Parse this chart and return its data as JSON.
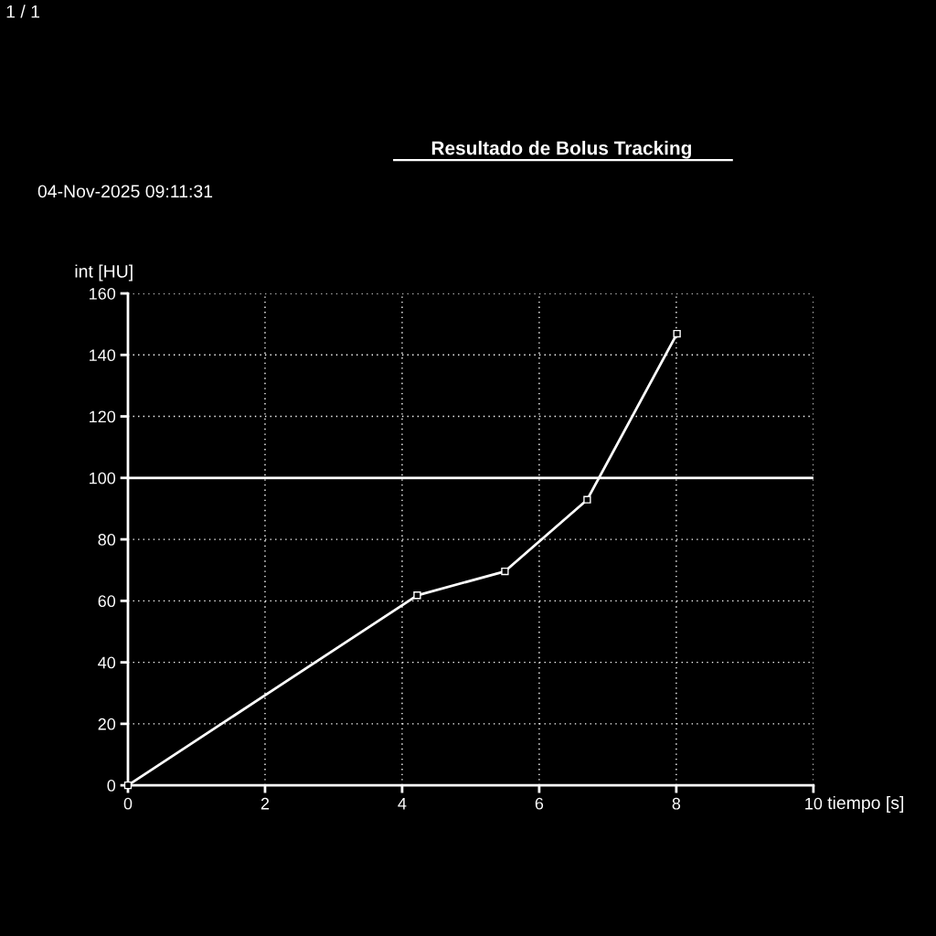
{
  "chart_data": {
    "type": "line",
    "title": "Resultado de Bolus Tracking",
    "xlabel": "tiempo [s]",
    "ylabel": "int [HU]",
    "annotations": [
      "1 / 1",
      "04-Nov-2025 09:11:31"
    ],
    "x": [
      0,
      4.22,
      5.5,
      6.7,
      8.01
    ],
    "series": [
      {
        "color": "#ffffff",
        "values": [
          0,
          61.8,
          69.6,
          92.9,
          146.9
        ]
      }
    ],
    "xlim": [
      0,
      10
    ],
    "xticks": [
      0,
      2,
      4,
      6,
      8,
      10
    ],
    "ylim": [
      0,
      160
    ],
    "yticks": [
      0,
      20,
      40,
      60,
      80,
      100,
      120,
      140,
      160
    ],
    "ref_lines": [
      {
        "axis": "y",
        "value": 100,
        "color": "#ffffff",
        "line_style": "solid"
      }
    ],
    "grid": true,
    "marker": "square",
    "line_style": "solid",
    "legend": false
  }
}
